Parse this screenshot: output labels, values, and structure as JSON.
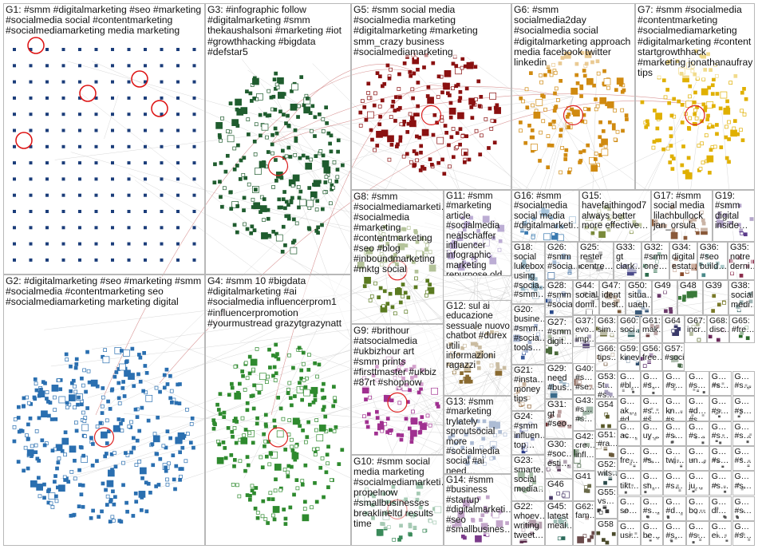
{
  "groups": [
    "G1: #smm #digitalmarketing #seo #marketing #socialmedia social #contentmarketing #socialmediamarketing media marketing",
    "G3: #infographic follow #digitalmarketing #smm thekaushalsoni #marketing #iot #growthhacking #bigdata #defstar5",
    "G5: #smm social media #socialmedia marketing #digitalmarketing #marketing smm_crazy business #socialmediamarketing",
    "G6: #smm socialmedia2day #socialmedia social #digitalmarketing approach media facebook twitter linkedin",
    "G7: #smm #socialmedia #contentmarketing #socialmediamarketing #digitalmarketing #content startgrowthhack #marketing jonathanaufray tips",
    "G2: #digitalmarketing #seo #marketing #smm #socialmedia #contentmarketing seo #socialmediamarketing marketing digital",
    "G4: #smm 10 #bigdata #digitalmarketing #ai #socialmedia influencerprom1 #influencerpromotion #yourmustread grazytgrazynatt",
    "G8: #smm #socialmediamarketi… #socialmedia #marketing #contentmarketing #seo #blog #inboundmarketing #mktg social",
    "G11: #smm #marketing article #socialmedia nealschaffer influencer infographic marketing repurpose old",
    "G12: sul ai educazione sessuale nuovo chatbot #durex utili informazioni ragazzi",
    "G9: #brithour #atsocialmedia #ukbizhour art #smm prints #firsttmaster #ukbiz #87rt #shopnow",
    "G13: #smm #marketing trylately sproutsocial more #socialmedia social #ai need…",
    "G10: #smm social media marketing #socialmediamarketi… propelnow #smallbusinesses breaklineltd results time",
    "G14: #smm #business #startup #digitalmarketi… #seo #smallbusines…",
    "G16: #smm #socialmedia social media #digitalmarketi…",
    "G15: havefaithingod7 always better more effective…",
    "G17: #smm social media lilachbullock jan_orsula",
    "G19: #smm digital inside…",
    "G18: social lukebox using #socia… #smm…",
    "G26: #smm #socia…",
    "G25: rester centre…",
    "G33: gt clark…",
    "G32: #smm one…",
    "G34: digital estat…",
    "G36: #seo build…",
    "G35: notre derni…",
    "G28: #smm #socia…",
    "G44: social domi…",
    "G47: ident best…",
    "G50: situa… uaeh…",
    "G49",
    "G48",
    "G39",
    "G38: social medi…",
    "G20: busine… #smm… #socia… tools…",
    "G27: #smm digit…",
    "G37: evo… imp…",
    "G63: sim…",
    "G60: soci…",
    "G61: mak…",
    "G64",
    "G67: incr…",
    "G68: disc…",
    "G65: #fre…",
    "G21: #insta… money tips",
    "G29: need #bus…",
    "G66: tips…",
    "G59: kinev…",
    "G56: free…",
    "G57: #soci…",
    "G40: #s… #se…",
    "G53: 5t… #s…",
    "G43: #s… #s…",
    "G54",
    "G24: #smm influen… top…",
    "G31: gt #seo…",
    "G23: smarte… social media…",
    "G30: #soc… esti…",
    "G42: cre… infl…",
    "G51: #ra…",
    "G52: wits…",
    "G46",
    "G41",
    "G55: vs…",
    "G22: whoev… writing tweet…",
    "G45: latest meal…",
    "G62: fam…",
    "G58"
  ],
  "small_groups": [
    "G… #bl…",
    "G… #s…",
    "G… #s…",
    "G… #s…",
    "G… #s…",
    "G… #s…",
    "G… ak… #d…",
    "G… #s… #s…",
    "G… kn… #s…",
    "G… #d… #s…",
    "G… #s…",
    "G… #s…",
    "G… ac…",
    "G… uy…",
    "G… #s…",
    "G… #s…",
    "G… #s…",
    "G… #s…",
    "G… fre…",
    "G… #s…",
    "G… twi…",
    "G… un…",
    "G… #s…",
    "G… #s…",
    "G… tikt…",
    "G… sn…",
    "G… #s…",
    "G… ju…",
    "G… #s…",
    "G… #s…",
    "G… so…",
    "G… #s…",
    "G… #d…",
    "G… bo…",
    "G… di…",
    "G… #s…",
    "G… usi…",
    "G… be…",
    "G… #s…",
    "G… #s…",
    "G… ei…",
    "G… #s…"
  ]
}
